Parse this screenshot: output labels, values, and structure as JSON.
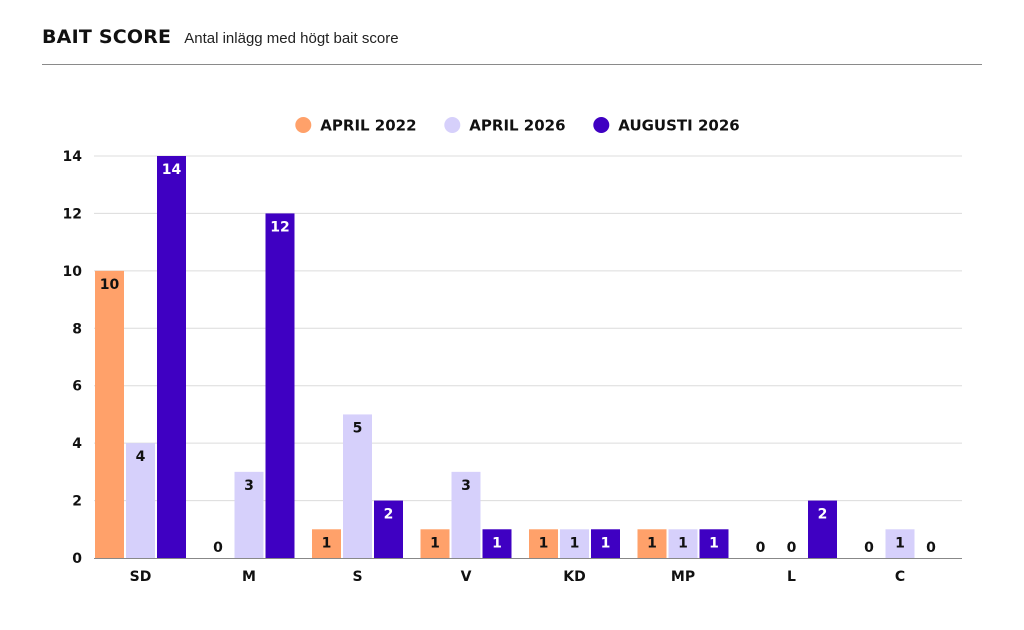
{
  "header": {
    "title": "BAIT SCORE",
    "subtitle": "Antal inlägg med högt bait score"
  },
  "chart_data": {
    "type": "bar",
    "categories": [
      "SD",
      "M",
      "S",
      "V",
      "KD",
      "MP",
      "L",
      "C"
    ],
    "series": [
      {
        "name": "APRIL 2022",
        "color": "#FFA16A",
        "values": [
          10,
          0,
          1,
          1,
          1,
          1,
          0,
          0
        ]
      },
      {
        "name": "APRIL 2026",
        "color": "#D6D0FB",
        "values": [
          4,
          3,
          5,
          3,
          1,
          1,
          0,
          1
        ]
      },
      {
        "name": "AUGUSTI 2026",
        "color": "#3F00C2",
        "values": [
          14,
          12,
          2,
          1,
          1,
          1,
          2,
          0
        ]
      }
    ],
    "ylim": [
      0,
      14
    ],
    "yticks": [
      0,
      2,
      4,
      6,
      8,
      10,
      12,
      14
    ],
    "grid": true,
    "legend_position": "top-center",
    "data_labels": true,
    "label_colors": {
      "on_dark": "#ffffff",
      "default": "#111111"
    }
  }
}
